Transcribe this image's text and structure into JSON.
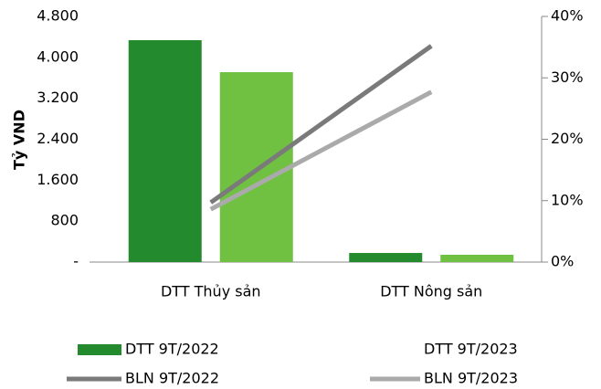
{
  "chart_data": {
    "type": "bar",
    "y_label": "Tỷ VND",
    "categories": [
      "DTT Thủy sản",
      "DTT Nông sản"
    ],
    "series": [
      {
        "name": "DTT 9T/2022",
        "type": "bar",
        "color": "#238b2e",
        "values": [
          4336,
          178
        ]
      },
      {
        "name": "DTT 9T/2023",
        "type": "bar",
        "color": "#70c042",
        "values": [
          3711,
          143
        ]
      },
      {
        "name": "BLN 9T/2022",
        "type": "line",
        "axis": "y2",
        "color": "#7a7a7a",
        "values": [
          9.7,
          35.2
        ]
      },
      {
        "name": "BLN 9T/2023",
        "type": "line",
        "axis": "y2",
        "color": "#aaaaaa",
        "values": [
          8.6,
          27.7
        ]
      }
    ],
    "ylim": [
      0,
      4800
    ],
    "yticks": [
      {
        "value": 0,
        "label": "-"
      },
      800,
      {
        "value": 1600,
        "label": "1.600"
      },
      {
        "value": 2400,
        "label": "2.400"
      },
      {
        "value": 3200,
        "label": "3.200"
      },
      {
        "value": 4000,
        "label": "4.000"
      },
      {
        "value": 4800,
        "label": "4.800"
      }
    ],
    "y2lim": [
      0,
      40
    ],
    "y2ticks": [
      {
        "value": 0,
        "label": "0%"
      },
      {
        "value": 10,
        "label": "10%"
      },
      {
        "value": 20,
        "label": "20%"
      },
      {
        "value": 30,
        "label": "30%"
      },
      {
        "value": 40,
        "label": "40%"
      }
    ],
    "legend": "bottom"
  }
}
